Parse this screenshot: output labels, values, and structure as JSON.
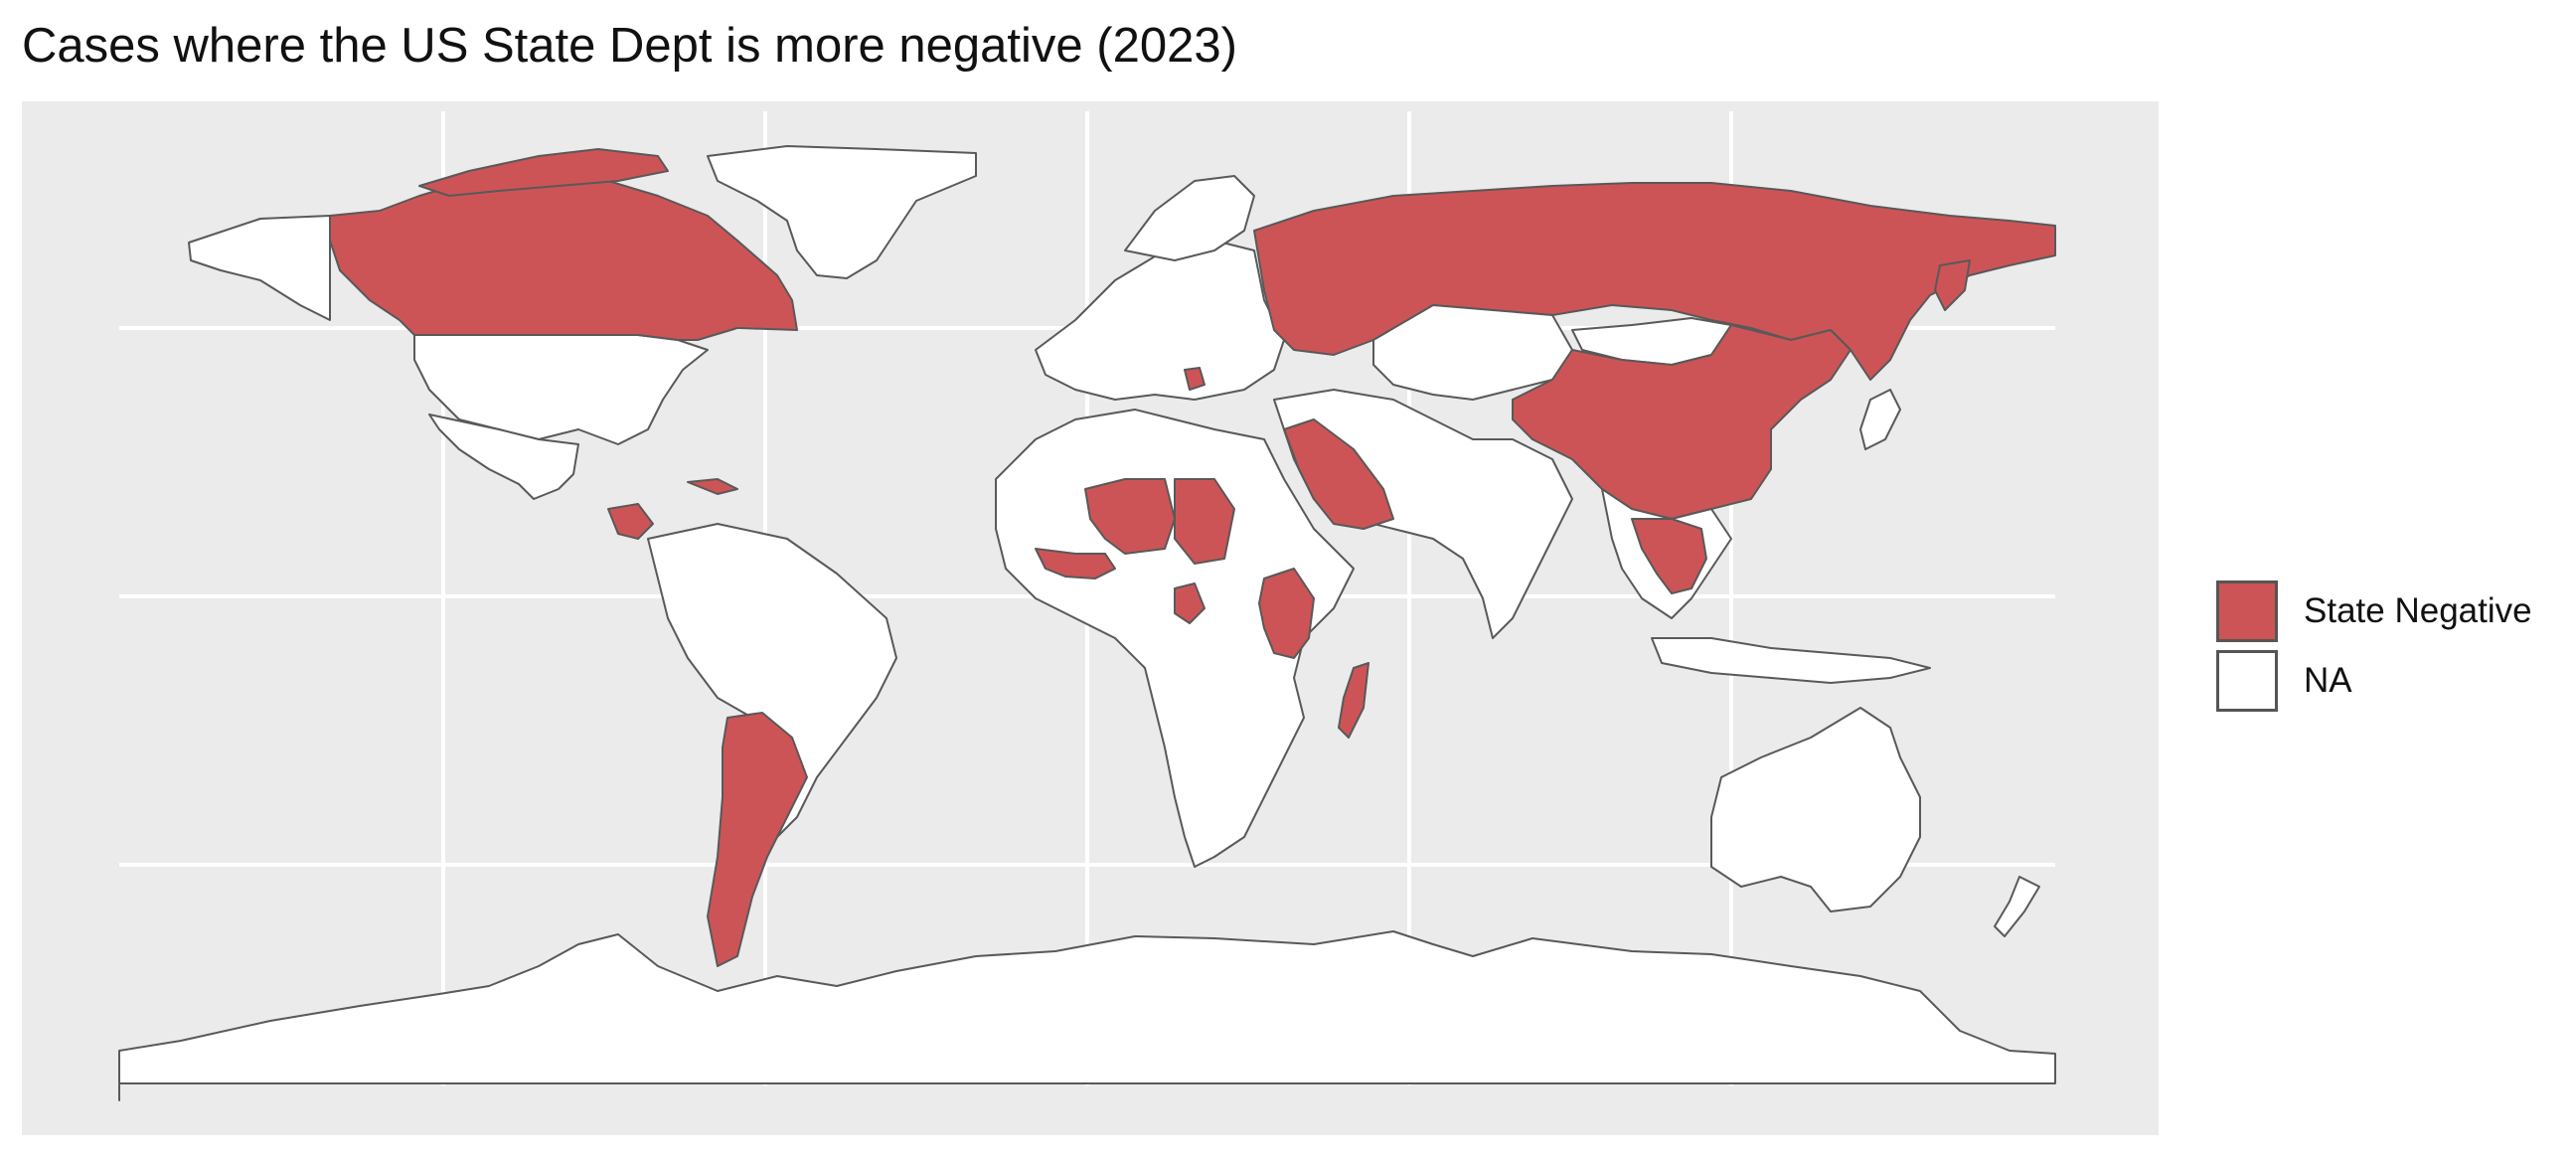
{
  "title": "Cases where the US State Dept is more negative (2023)",
  "colors": {
    "state_negative": "#cd5456",
    "na": "#ffffff",
    "panel_bg": "#ebebeb",
    "border": "#595959",
    "grid": "#ffffff"
  },
  "legend": {
    "items": [
      {
        "label": "State Negative",
        "color": "#cd5456"
      },
      {
        "label": "NA",
        "color": "#ffffff"
      }
    ]
  },
  "map": {
    "projection": "equirectangular",
    "state_negative_countries": [
      "Canada",
      "Russia",
      "China",
      "Saudi Arabia",
      "Argentina",
      "Mali",
      "Niger",
      "Sierra Leone",
      "Liberia",
      "Côte d'Ivoire",
      "Ghana",
      "Nicaragua",
      "Honduras",
      "Cuba",
      "Gabon",
      "Kenya",
      "Tanzania",
      "Uganda",
      "Madagascar",
      "Vietnam",
      "Laos",
      "Cambodia",
      "Serbia"
    ]
  }
}
